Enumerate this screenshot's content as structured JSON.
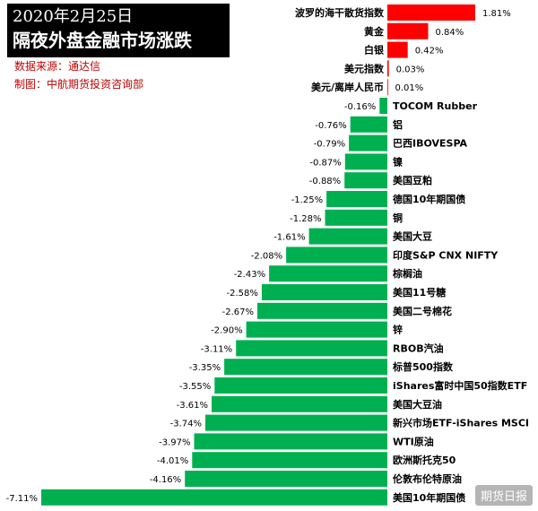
{
  "header": {
    "title_line1": "2020年2月25日",
    "title_line2": "隔夜外盘金融市场涨跌",
    "source": "数据来源：通达信",
    "maker": "制图：中航期货投资咨询部"
  },
  "watermark": "期货日报",
  "colors": {
    "positive": "#ff0000",
    "negative": "#00b050",
    "title_bg": "#000000",
    "meta_text": "#c00000"
  },
  "chart_data": {
    "type": "bar",
    "orientation": "horizontal",
    "title": "隔夜外盘金融市场涨跌",
    "categories": [
      "波罗的海干散货指数",
      "黄金",
      "白银",
      "美元指数",
      "美元/离岸人民币",
      "TOCOM Rubber",
      "铝",
      "巴西IBOVESPA",
      "镍",
      "美国豆粕",
      "德国10年期国债",
      "铜",
      "美国大豆",
      "印度S&P CNX NIFTY",
      "棕榈油",
      "美国11号糖",
      "美国二号棉花",
      "锌",
      "RBOB汽油",
      "标普500指数",
      "iShares富时中国50指数ETF",
      "美国大豆油",
      "新兴市场ETF-iShares MSCI",
      "WTI原油",
      "欧洲斯托克50",
      "伦敦布伦特原油",
      "美国10年期国债"
    ],
    "values": [
      1.81,
      0.84,
      0.42,
      0.03,
      0.01,
      -0.16,
      -0.76,
      -0.79,
      -0.87,
      -0.88,
      -1.25,
      -1.28,
      -1.61,
      -2.08,
      -2.43,
      -2.58,
      -2.67,
      -2.9,
      -3.11,
      -3.35,
      -3.55,
      -3.61,
      -3.74,
      -3.97,
      -4.01,
      -4.16,
      -7.11
    ],
    "value_labels": [
      "1.81%",
      "0.84%",
      "0.42%",
      "0.03%",
      "0.01%",
      "-0.16%",
      "-0.76%",
      "-0.79%",
      "-0.87%",
      "-0.88%",
      "-1.25%",
      "-1.28%",
      "-1.61%",
      "-2.08%",
      "-2.43%",
      "-2.58%",
      "-2.67%",
      "-2.90%",
      "-3.11%",
      "-3.35%",
      "-3.55%",
      "-3.61%",
      "-3.74%",
      "-3.97%",
      "-4.01%",
      "-4.16%",
      "-7.11%"
    ],
    "unit": "%",
    "xlim": [
      -7.11,
      1.81
    ],
    "grid": false,
    "legend": "none"
  }
}
